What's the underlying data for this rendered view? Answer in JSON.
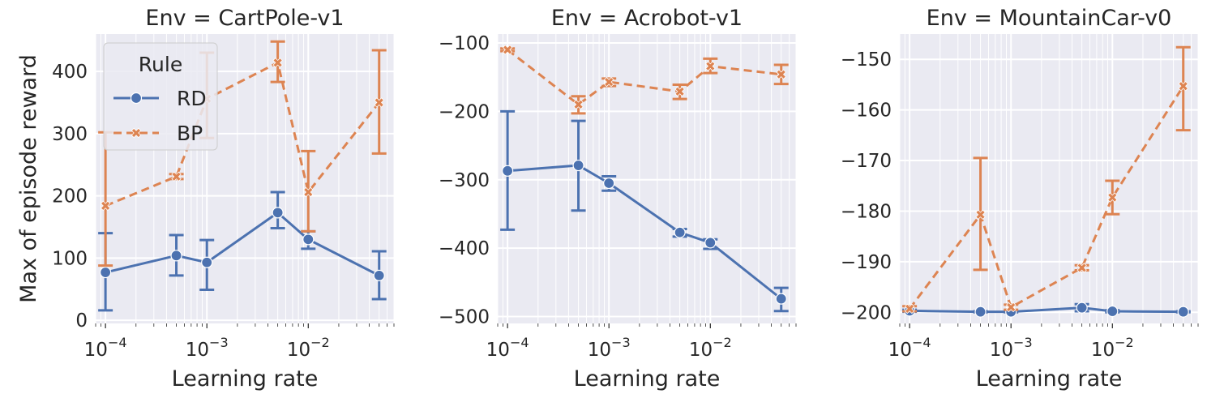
{
  "chart_data": [
    {
      "type": "line",
      "title": "Env = CartPole-v1",
      "xlabel": "Learning rate",
      "ylabel": "Max of episode reward",
      "x_scale": "log",
      "xlim": [
        8e-05,
        0.07
      ],
      "ylim": [
        -5,
        460
      ],
      "x_ticks": [
        0.0001,
        0.001,
        0.01
      ],
      "x_tick_labels": [
        [
          "10",
          "−4"
        ],
        [
          "10",
          "−3"
        ],
        [
          "10",
          "−2"
        ]
      ],
      "y_ticks": [
        0,
        100,
        200,
        300,
        400
      ],
      "y_tick_labels": [
        "0",
        "100",
        "200",
        "300",
        "400"
      ],
      "series": [
        {
          "name": "RD",
          "x": [
            0.0001,
            0.0005,
            0.001,
            0.005,
            0.01,
            0.05
          ],
          "y": [
            77,
            104,
            93,
            173,
            130,
            72
          ],
          "err_low": [
            16,
            72,
            49,
            148,
            115,
            34
          ],
          "err_high": [
            140,
            137,
            129,
            206,
            143,
            111
          ]
        },
        {
          "name": "BP",
          "x": [
            0.0001,
            0.0005,
            0.001,
            0.005,
            0.01,
            0.05
          ],
          "y": [
            184,
            231,
            356,
            414,
            206,
            350
          ],
          "err_low": [
            88,
            227,
            293,
            383,
            143,
            268
          ],
          "err_high": [
            302,
            235,
            430,
            448,
            272,
            434
          ]
        }
      ],
      "legend": {
        "title": "Rule",
        "position": "upper-left"
      }
    },
    {
      "type": "line",
      "title": "Env = Acrobot-v1",
      "xlabel": "Learning rate",
      "ylabel": "",
      "x_scale": "log",
      "xlim": [
        8e-05,
        0.07
      ],
      "ylim": [
        -510,
        -87
      ],
      "x_ticks": [
        0.0001,
        0.001,
        0.01
      ],
      "x_tick_labels": [
        [
          "10",
          "−4"
        ],
        [
          "10",
          "−3"
        ],
        [
          "10",
          "−2"
        ]
      ],
      "y_ticks": [
        -500,
        -400,
        -300,
        -200,
        -100
      ],
      "y_tick_labels": [
        "−500",
        "−400",
        "−300",
        "−200",
        "−100"
      ],
      "series": [
        {
          "name": "RD",
          "x": [
            0.0001,
            0.0005,
            0.001,
            0.005,
            0.01,
            0.05
          ],
          "y": [
            -287,
            -279,
            -305,
            -377,
            -392,
            -474
          ],
          "err_low": [
            -373,
            -345,
            -316,
            -383,
            -401,
            -492
          ],
          "err_high": [
            -200,
            -214,
            -295,
            -372,
            -387,
            -458
          ]
        },
        {
          "name": "BP",
          "x": [
            0.0001,
            0.0005,
            0.001,
            0.005,
            0.01,
            0.05
          ],
          "y": [
            -110,
            -190,
            -157,
            -171,
            -134,
            -146
          ],
          "err_low": [
            -112,
            -203,
            -163,
            -182,
            -144,
            -160
          ],
          "err_high": [
            -108,
            -178,
            -152,
            -161,
            -123,
            -132
          ]
        }
      ]
    },
    {
      "type": "line",
      "title": "Env = MountainCar-v0",
      "xlabel": "Learning rate",
      "ylabel": "",
      "x_scale": "log",
      "xlim": [
        8e-05,
        0.07
      ],
      "ylim": [
        -202.2,
        -145
      ],
      "x_ticks": [
        0.0001,
        0.001,
        0.01
      ],
      "x_tick_labels": [
        [
          "10",
          "−4"
        ],
        [
          "10",
          "−3"
        ],
        [
          "10",
          "−2"
        ]
      ],
      "y_ticks": [
        -200,
        -190,
        -180,
        -170,
        -160,
        -150
      ],
      "y_tick_labels": [
        "−200",
        "−190",
        "−180",
        "−170",
        "−160",
        "−150"
      ],
      "series": [
        {
          "name": "RD",
          "x": [
            0.0001,
            0.0005,
            0.001,
            0.005,
            0.01,
            0.05
          ],
          "y": [
            -199.7,
            -199.9,
            -199.9,
            -199.1,
            -199.8,
            -199.9
          ],
          "err_low": [
            -199.9,
            -200,
            -200,
            -199.8,
            -200,
            -200
          ],
          "err_high": [
            -199.5,
            -199.8,
            -199.8,
            -198.4,
            -199.6,
            -199.8
          ]
        },
        {
          "name": "BP",
          "x": [
            0.0001,
            0.0005,
            0.001,
            0.005,
            0.01,
            0.05
          ],
          "y": [
            -199.3,
            -180.7,
            -199,
            -191.2,
            -177.3,
            -155.3
          ],
          "err_low": [
            -199.8,
            -191.6,
            -199.5,
            -191.7,
            -180.6,
            -164
          ],
          "err_high": [
            -198.8,
            -169.5,
            -198.5,
            -190.7,
            -174,
            -147.6
          ]
        }
      ]
    }
  ],
  "style": {
    "panel_bg": "#eaeaf2",
    "grid_color": "#ffffff",
    "text_color": "#262626",
    "rd_color": "#4c72b0",
    "bp_color": "#dd8452",
    "rd_marker": "circle",
    "bp_marker": "x-cross"
  }
}
